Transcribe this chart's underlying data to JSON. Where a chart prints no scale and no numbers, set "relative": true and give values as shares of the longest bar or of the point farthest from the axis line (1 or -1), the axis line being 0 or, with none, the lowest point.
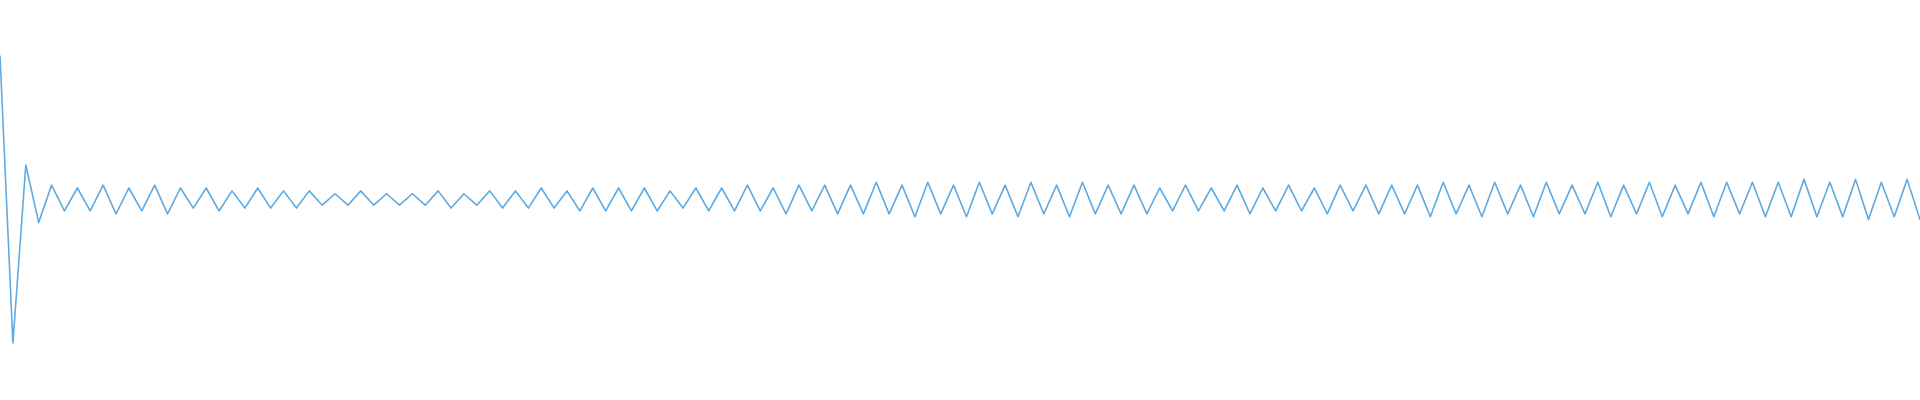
{
  "chart_data": {
    "type": "line",
    "relative": true,
    "categories": [
      null,
      null,
      null,
      null,
      null,
      null,
      null,
      null,
      null,
      null,
      null,
      null,
      null,
      null,
      null,
      null,
      null,
      null,
      null,
      null,
      null,
      null,
      null,
      null,
      null,
      null,
      null,
      null,
      null,
      null,
      null,
      null,
      null,
      null,
      null,
      null,
      null,
      null,
      null,
      null,
      null,
      null,
      null,
      null,
      null,
      null,
      null,
      null,
      null,
      null,
      null,
      null,
      null,
      null,
      null,
      null,
      null,
      null,
      null,
      null,
      null,
      null,
      null,
      null,
      null,
      null,
      null,
      null,
      null,
      null,
      null,
      null,
      null,
      null,
      null,
      null,
      null,
      null,
      null,
      null,
      null,
      null,
      null,
      null,
      null,
      null,
      null,
      null,
      null,
      null,
      null,
      null,
      null,
      null,
      null,
      null,
      null,
      null,
      null,
      null,
      null,
      null,
      null,
      null,
      null,
      null,
      null,
      null,
      null,
      null,
      null,
      null,
      null,
      null,
      null,
      null,
      null,
      null,
      null,
      null,
      null,
      null,
      null,
      null,
      null,
      null,
      null,
      null,
      null,
      null,
      null,
      null,
      null,
      null,
      null,
      null,
      null,
      null,
      null,
      null,
      null,
      null,
      null,
      null,
      null,
      null,
      null,
      null,
      null,
      null
    ],
    "series": [
      {
        "color": "#5daae2",
        "values": [
          1.0,
          0.0,
          0.62,
          0.42,
          0.55,
          0.46,
          0.54,
          0.46,
          0.55,
          0.45,
          0.54,
          0.46,
          0.55,
          0.45,
          0.54,
          0.47,
          0.54,
          0.46,
          0.53,
          0.47,
          0.54,
          0.47,
          0.53,
          0.47,
          0.53,
          0.48,
          0.52,
          0.48,
          0.53,
          0.48,
          0.52,
          0.48,
          0.52,
          0.48,
          0.53,
          0.47,
          0.52,
          0.48,
          0.53,
          0.47,
          0.53,
          0.47,
          0.54,
          0.47,
          0.53,
          0.46,
          0.54,
          0.46,
          0.54,
          0.46,
          0.54,
          0.46,
          0.53,
          0.47,
          0.54,
          0.46,
          0.54,
          0.46,
          0.55,
          0.46,
          0.54,
          0.45,
          0.55,
          0.46,
          0.55,
          0.45,
          0.55,
          0.45,
          0.56,
          0.45,
          0.55,
          0.44,
          0.56,
          0.45,
          0.55,
          0.44,
          0.56,
          0.45,
          0.55,
          0.44,
          0.56,
          0.45,
          0.55,
          0.44,
          0.56,
          0.45,
          0.55,
          0.45,
          0.55,
          0.45,
          0.54,
          0.46,
          0.55,
          0.46,
          0.54,
          0.46,
          0.55,
          0.45,
          0.54,
          0.46,
          0.55,
          0.46,
          0.54,
          0.45,
          0.55,
          0.46,
          0.55,
          0.45,
          0.55,
          0.45,
          0.55,
          0.44,
          0.56,
          0.45,
          0.55,
          0.44,
          0.56,
          0.45,
          0.55,
          0.44,
          0.56,
          0.45,
          0.55,
          0.45,
          0.56,
          0.44,
          0.55,
          0.45,
          0.56,
          0.44,
          0.55,
          0.45,
          0.56,
          0.44,
          0.56,
          0.45,
          0.56,
          0.44,
          0.56,
          0.44,
          0.57,
          0.44,
          0.56,
          0.44,
          0.57,
          0.43,
          0.56,
          0.44,
          0.57,
          0.43
        ]
      }
    ]
  }
}
